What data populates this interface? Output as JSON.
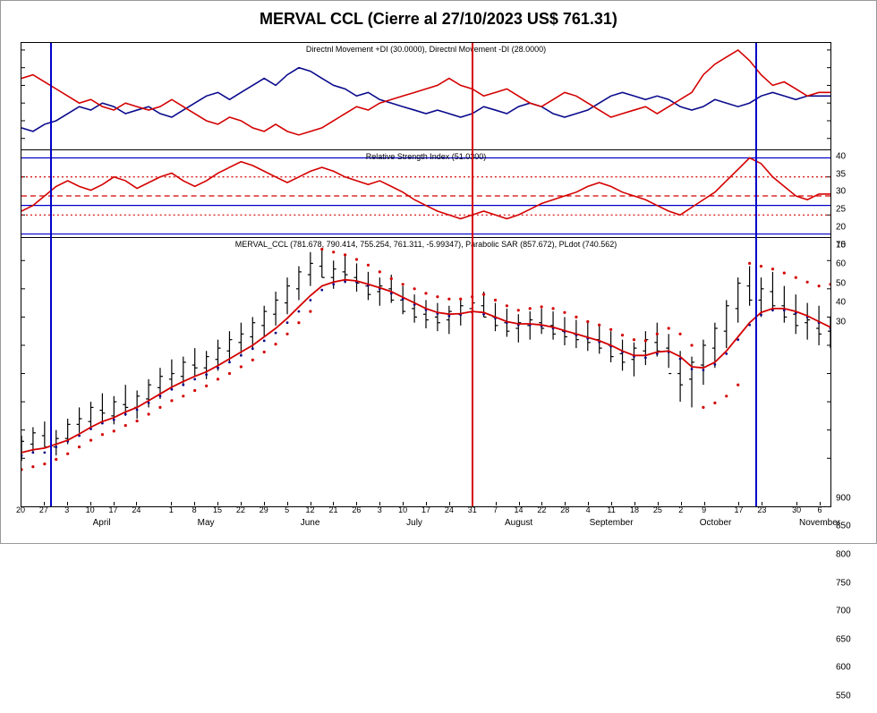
{
  "title": "MERVAL CCL (Cierre al 27/10/2023 US$ 761.31)",
  "chart_bg": "#ffffff",
  "border_color": "#000000",
  "marker_lines": {
    "blue": "#0000c8",
    "red": "#d40000",
    "blue_positions_pct": [
      3.5,
      90.5
    ],
    "red_position_pct": [
      55.5
    ]
  },
  "panels": {
    "dmi": {
      "title": "Directnl Movement +DI (30.0000), Directnl Movement -DI (28.0000)",
      "top_pct": 0,
      "height_pct": 23,
      "ylim": [
        12,
        42
      ],
      "yticks": [
        15,
        20,
        25,
        30,
        35,
        40
      ],
      "series": {
        "plus_di": {
          "color": "#0a0a8c",
          "stroke_width": 1.6,
          "values": [
            18,
            17,
            19,
            20,
            22,
            24,
            23,
            25,
            24,
            22,
            23,
            24,
            22,
            21,
            23,
            25,
            27,
            28,
            26,
            28,
            30,
            32,
            30,
            33,
            35,
            34,
            32,
            30,
            29,
            27,
            28,
            26,
            25,
            24,
            23,
            22,
            23,
            22,
            21,
            22,
            24,
            23,
            22,
            24,
            25,
            24,
            22,
            21,
            22,
            23,
            25,
            27,
            28,
            27,
            26,
            27,
            26,
            24,
            23,
            24,
            26,
            25,
            24,
            25,
            27,
            28,
            27,
            26,
            27,
            27,
            27
          ]
        },
        "minus_di": {
          "color": "#d40000",
          "stroke_width": 1.6,
          "values": [
            32,
            33,
            31,
            29,
            27,
            25,
            26,
            24,
            23,
            25,
            24,
            23,
            24,
            26,
            24,
            22,
            20,
            19,
            21,
            20,
            18,
            17,
            19,
            17,
            16,
            17,
            18,
            20,
            22,
            24,
            23,
            25,
            26,
            27,
            28,
            29,
            30,
            32,
            30,
            29,
            27,
            28,
            29,
            27,
            25,
            24,
            26,
            28,
            27,
            25,
            23,
            21,
            22,
            23,
            24,
            22,
            24,
            26,
            28,
            33,
            36,
            38,
            40,
            37,
            33,
            30,
            31,
            29,
            27,
            28,
            28
          ]
        }
      }
    },
    "rsi": {
      "title": "Relative Strength Index (51.0300)",
      "top_pct": 23,
      "height_pct": 19,
      "ylim": [
        28,
        74
      ],
      "yticks": [
        30,
        40,
        50,
        60,
        70
      ],
      "hlines_blue": [
        30,
        45,
        70
      ],
      "hlines_red_dashed": [
        50
      ],
      "hlines_red_dotted": [
        40,
        60
      ],
      "series": {
        "rsi": {
          "color": "#d40000",
          "stroke_width": 1.6,
          "values": [
            42,
            45,
            50,
            55,
            58,
            55,
            53,
            56,
            60,
            58,
            54,
            57,
            60,
            62,
            58,
            55,
            58,
            62,
            65,
            68,
            66,
            63,
            60,
            57,
            60,
            63,
            65,
            63,
            60,
            58,
            56,
            58,
            55,
            52,
            48,
            45,
            42,
            40,
            38,
            40,
            42,
            40,
            38,
            40,
            43,
            46,
            48,
            50,
            52,
            55,
            57,
            55,
            52,
            50,
            48,
            45,
            42,
            40,
            44,
            48,
            52,
            58,
            64,
            70,
            67,
            60,
            55,
            50,
            48,
            51,
            51
          ]
        }
      }
    },
    "price": {
      "title": "MERVAL_CCL (781.678, 790.414, 755.254, 761.311, -5.99347), Parabolic SAR (857.672), PLdot (740.562)",
      "top_pct": 42,
      "height_pct": 51,
      "ylim": [
        520,
        940
      ],
      "yticks": [
        550,
        600,
        650,
        700,
        750,
        800,
        850,
        900
      ],
      "ohlc_color": "#000000",
      "ma_color": "#d40000",
      "sar_upper_color": "#d40000",
      "sar_lower_color": "#d40000",
      "pldot_color": "#0a0a8c",
      "ohlc": [
        [
          560,
          590,
          545,
          580
        ],
        [
          575,
          605,
          560,
          595
        ],
        [
          590,
          615,
          570,
          570
        ],
        [
          570,
          600,
          555,
          585
        ],
        [
          585,
          620,
          575,
          610
        ],
        [
          610,
          640,
          595,
          620
        ],
        [
          615,
          650,
          600,
          640
        ],
        [
          635,
          665,
          615,
          630
        ],
        [
          625,
          660,
          610,
          650
        ],
        [
          645,
          680,
          625,
          640
        ],
        [
          640,
          670,
          620,
          660
        ],
        [
          655,
          690,
          640,
          680
        ],
        [
          675,
          710,
          655,
          695
        ],
        [
          690,
          725,
          670,
          700
        ],
        [
          695,
          730,
          680,
          720
        ],
        [
          715,
          745,
          695,
          710
        ],
        [
          710,
          740,
          690,
          730
        ],
        [
          725,
          760,
          705,
          745
        ],
        [
          740,
          775,
          720,
          760
        ],
        [
          755,
          790,
          735,
          770
        ],
        [
          765,
          800,
          745,
          790
        ],
        [
          785,
          820,
          765,
          810
        ],
        [
          805,
          845,
          785,
          830
        ],
        [
          825,
          870,
          805,
          855
        ],
        [
          850,
          890,
          830,
          880
        ],
        [
          875,
          915,
          855,
          895
        ],
        [
          890,
          920,
          870,
          870
        ],
        [
          870,
          900,
          850,
          885
        ],
        [
          880,
          910,
          860,
          875
        ],
        [
          870,
          895,
          845,
          860
        ],
        [
          855,
          880,
          830,
          840
        ],
        [
          845,
          870,
          820,
          855
        ],
        [
          850,
          875,
          825,
          830
        ],
        [
          830,
          855,
          805,
          810
        ],
        [
          815,
          840,
          790,
          800
        ],
        [
          805,
          830,
          780,
          795
        ],
        [
          800,
          825,
          775,
          790
        ],
        [
          795,
          820,
          770,
          810
        ],
        [
          805,
          830,
          785,
          820
        ],
        [
          815,
          840,
          795,
          825
        ],
        [
          820,
          845,
          800,
          800
        ],
        [
          800,
          825,
          775,
          785
        ],
        [
          790,
          815,
          765,
          775
        ],
        [
          780,
          805,
          755,
          790
        ],
        [
          785,
          810,
          760,
          795
        ],
        [
          790,
          815,
          770,
          780
        ],
        [
          785,
          810,
          760,
          770
        ],
        [
          775,
          800,
          750,
          765
        ],
        [
          770,
          795,
          745,
          760
        ],
        [
          765,
          790,
          740,
          755
        ],
        [
          760,
          785,
          735,
          745
        ],
        [
          750,
          775,
          720,
          730
        ],
        [
          735,
          760,
          705,
          720
        ],
        [
          725,
          755,
          695,
          745
        ],
        [
          740,
          775,
          715,
          760
        ],
        [
          755,
          790,
          730,
          740
        ],
        [
          745,
          770,
          710,
          700
        ],
        [
          700,
          740,
          650,
          680
        ],
        [
          690,
          730,
          640,
          720
        ],
        [
          715,
          760,
          680,
          750
        ],
        [
          745,
          790,
          710,
          780
        ],
        [
          775,
          830,
          745,
          820
        ],
        [
          815,
          870,
          790,
          860
        ],
        [
          855,
          890,
          820,
          830
        ],
        [
          830,
          870,
          800,
          850
        ],
        [
          845,
          880,
          815,
          820
        ],
        [
          820,
          855,
          790,
          800
        ],
        [
          805,
          840,
          770,
          785
        ],
        [
          790,
          825,
          760,
          795
        ],
        [
          780,
          820,
          750,
          770
        ],
        [
          775,
          800,
          745,
          761
        ]
      ],
      "ma": [
        560,
        565,
        568,
        575,
        582,
        593,
        605,
        615,
        622,
        632,
        640,
        652,
        664,
        676,
        686,
        695,
        703,
        714,
        726,
        738,
        750,
        765,
        780,
        798,
        818,
        838,
        855,
        862,
        866,
        864,
        858,
        852,
        845,
        835,
        825,
        815,
        808,
        805,
        806,
        810,
        808,
        800,
        792,
        788,
        788,
        786,
        782,
        776,
        770,
        764,
        758,
        750,
        740,
        732,
        732,
        738,
        740,
        730,
        712,
        710,
        720,
        740,
        765,
        790,
        808,
        815,
        815,
        810,
        802,
        792,
        782
      ],
      "pldot": [
        555,
        560,
        560,
        570,
        580,
        590,
        602,
        612,
        618,
        628,
        636,
        648,
        660,
        672,
        680,
        690,
        698,
        710,
        720,
        732,
        744,
        758,
        772,
        790,
        810,
        830,
        848,
        858,
        863,
        862,
        856,
        850,
        842,
        832,
        822,
        813,
        806,
        802,
        804,
        808,
        805,
        798,
        790,
        786,
        786,
        784,
        780,
        774,
        768,
        762,
        756,
        748,
        738,
        730,
        728,
        735,
        738,
        726,
        708,
        706,
        716,
        735,
        760,
        786,
        804,
        812,
        812,
        807,
        800,
        790,
        780
      ],
      "sar_upper": [
        null,
        null,
        null,
        null,
        null,
        null,
        null,
        null,
        null,
        null,
        null,
        null,
        null,
        null,
        null,
        null,
        null,
        null,
        null,
        null,
        null,
        null,
        null,
        null,
        null,
        null,
        920,
        915,
        910,
        902,
        892,
        880,
        868,
        858,
        850,
        842,
        836,
        832,
        832,
        836,
        840,
        830,
        820,
        812,
        815,
        818,
        815,
        808,
        800,
        792,
        786,
        778,
        768,
        760,
        758,
        770,
        780,
        770,
        750,
        null,
        null,
        null,
        null,
        895,
        890,
        885,
        878,
        870,
        862,
        855,
        858
      ],
      "sar_lower": [
        530,
        535,
        540,
        548,
        558,
        570,
        582,
        592,
        598,
        608,
        616,
        628,
        640,
        652,
        660,
        670,
        678,
        690,
        700,
        712,
        724,
        738,
        752,
        770,
        790,
        810,
        null,
        null,
        null,
        null,
        null,
        null,
        null,
        null,
        null,
        null,
        null,
        null,
        null,
        null,
        null,
        null,
        null,
        null,
        null,
        null,
        null,
        null,
        null,
        null,
        null,
        null,
        null,
        null,
        null,
        null,
        null,
        null,
        null,
        640,
        648,
        660,
        680,
        null,
        null,
        null,
        null,
        null,
        null,
        null,
        null
      ]
    }
  },
  "x_axis": {
    "n_points": 71,
    "day_labels": [
      {
        "i": 0,
        "t": "20"
      },
      {
        "i": 2,
        "t": "27"
      },
      {
        "i": 4,
        "t": "3"
      },
      {
        "i": 6,
        "t": "10"
      },
      {
        "i": 8,
        "t": "17"
      },
      {
        "i": 10,
        "t": "24"
      },
      {
        "i": 13,
        "t": "1"
      },
      {
        "i": 15,
        "t": "8"
      },
      {
        "i": 17,
        "t": "15"
      },
      {
        "i": 19,
        "t": "22"
      },
      {
        "i": 21,
        "t": "29"
      },
      {
        "i": 23,
        "t": "5"
      },
      {
        "i": 25,
        "t": "12"
      },
      {
        "i": 27,
        "t": "21"
      },
      {
        "i": 29,
        "t": "26"
      },
      {
        "i": 31,
        "t": "3"
      },
      {
        "i": 33,
        "t": "10"
      },
      {
        "i": 35,
        "t": "17"
      },
      {
        "i": 37,
        "t": "24"
      },
      {
        "i": 39,
        "t": "31"
      },
      {
        "i": 41,
        "t": "7"
      },
      {
        "i": 43,
        "t": "14"
      },
      {
        "i": 45,
        "t": "22"
      },
      {
        "i": 47,
        "t": "28"
      },
      {
        "i": 49,
        "t": "4"
      },
      {
        "i": 51,
        "t": "11"
      },
      {
        "i": 53,
        "t": "18"
      },
      {
        "i": 55,
        "t": "25"
      },
      {
        "i": 57,
        "t": "2"
      },
      {
        "i": 59,
        "t": "9"
      },
      {
        "i": 62,
        "t": "17"
      },
      {
        "i": 64,
        "t": "23"
      },
      {
        "i": 67,
        "t": "30"
      },
      {
        "i": 69,
        "t": "6"
      }
    ],
    "month_labels": [
      {
        "i": 7,
        "t": "April"
      },
      {
        "i": 16,
        "t": "May"
      },
      {
        "i": 25,
        "t": "June"
      },
      {
        "i": 34,
        "t": "July"
      },
      {
        "i": 43,
        "t": "August"
      },
      {
        "i": 51,
        "t": "September"
      },
      {
        "i": 60,
        "t": "October"
      },
      {
        "i": 69,
        "t": "November"
      }
    ]
  }
}
